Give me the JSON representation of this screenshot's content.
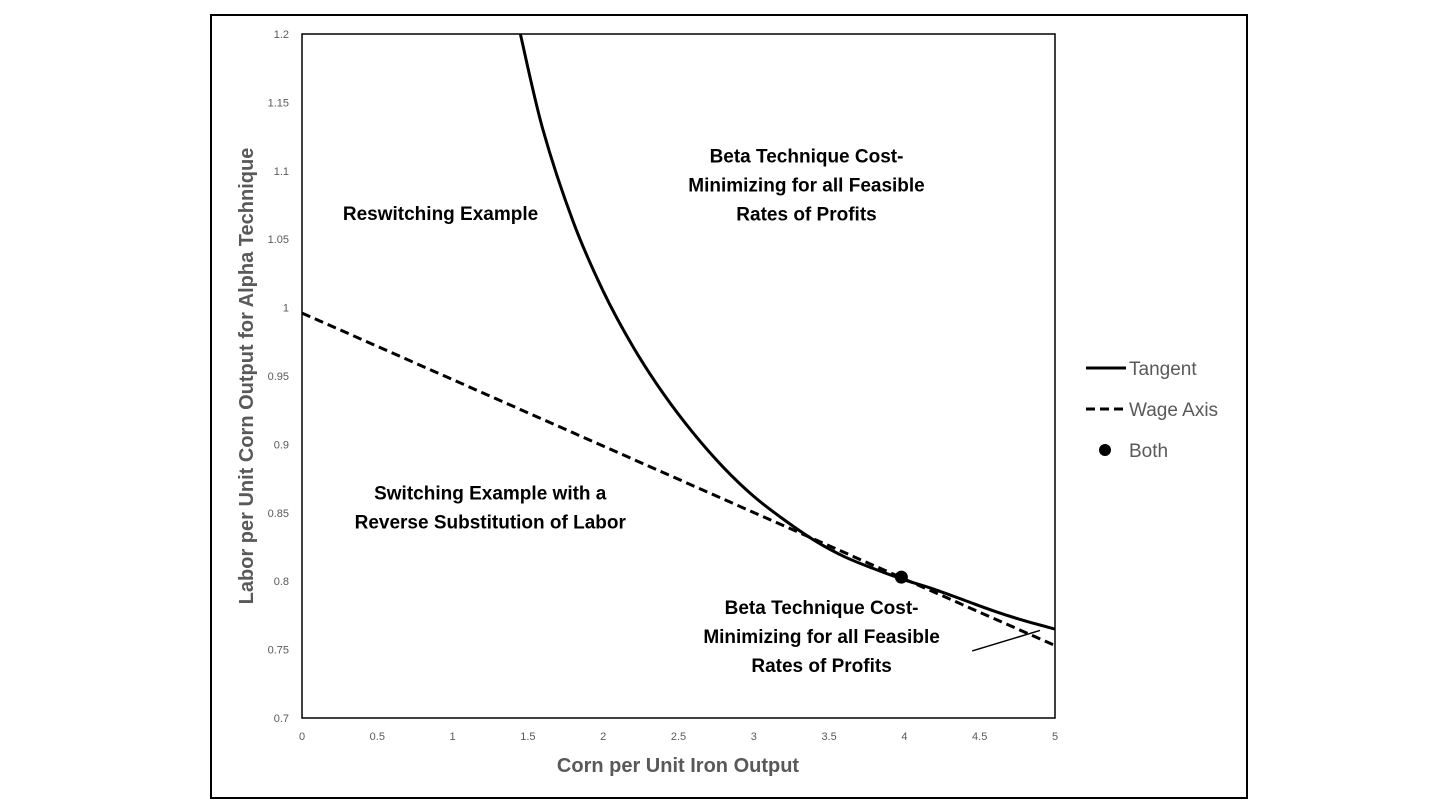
{
  "chart_data": {
    "type": "line",
    "xlabel": "Corn per Unit Iron Output",
    "ylabel": "Labor per Unit Corn Output for Alpha Technique",
    "xlim": [
      0,
      5
    ],
    "ylim": [
      0.7,
      1.2
    ],
    "xticks": [
      "0",
      "0.5",
      "1",
      "1.5",
      "2",
      "2.5",
      "3",
      "3.5",
      "4",
      "4.5",
      "5"
    ],
    "yticks": [
      "0.7",
      "0.75",
      "0.8",
      "0.85",
      "0.9",
      "0.95",
      "1",
      "1.05",
      "1.1",
      "1.15",
      "1.2"
    ],
    "grid": false,
    "legend_position": "right",
    "series": [
      {
        "name": "Tangent",
        "style": "solid",
        "x": [
          1.45,
          1.6,
          1.8,
          2.0,
          2.2,
          2.4,
          2.6,
          2.8,
          3.0,
          3.2,
          3.4,
          3.6,
          3.8,
          4.0,
          4.2,
          4.4,
          4.6,
          4.8,
          5.0
        ],
        "y": [
          1.2,
          1.13,
          1.063,
          1.012,
          0.971,
          0.937,
          0.908,
          0.883,
          0.862,
          0.845,
          0.83,
          0.818,
          0.809,
          0.801,
          0.794,
          0.786,
          0.778,
          0.771,
          0.765
        ]
      },
      {
        "name": "Wage Axis",
        "style": "dashed",
        "x": [
          0,
          5
        ],
        "y": [
          0.996,
          0.753
        ]
      },
      {
        "name": "Both",
        "style": "marker",
        "x": [
          3.98
        ],
        "y": [
          0.803
        ]
      }
    ],
    "annotations": [
      {
        "lines": [
          "Reswitching Example"
        ],
        "x": 0.92,
        "y": 1.064
      },
      {
        "lines": [
          "Beta Technique Cost-",
          "Minimizing for all Feasible",
          "Rates of Profits"
        ],
        "x": 3.35,
        "y": 1.085
      },
      {
        "lines": [
          "Switching Example with a",
          "Reverse Substitution of Labor"
        ],
        "x": 1.25,
        "y": 0.849
      },
      {
        "lines": [
          "Beta Technique Cost-",
          "Minimizing for all Feasible",
          "Rates of Profits"
        ],
        "x": 3.45,
        "y": 0.755
      }
    ],
    "pointer": {
      "from": [
        4.45,
        0.749
      ],
      "to": [
        4.9,
        0.764
      ]
    }
  }
}
